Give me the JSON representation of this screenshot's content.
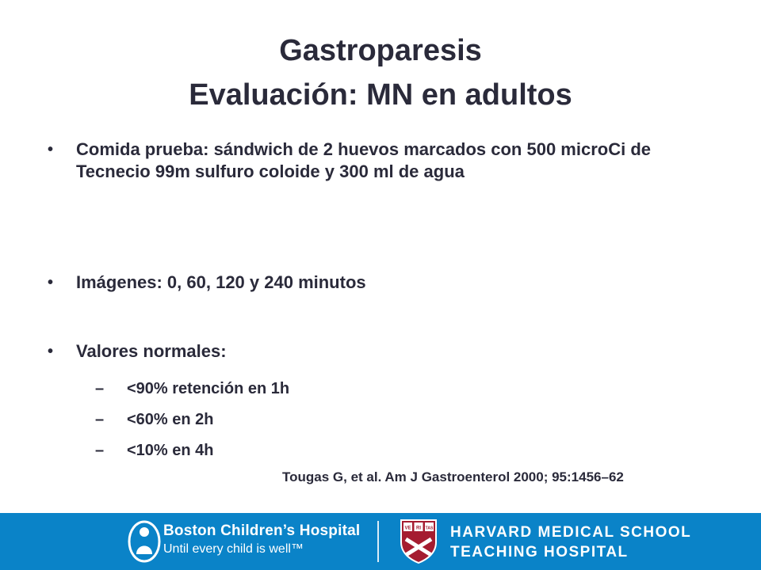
{
  "slide": {
    "title_line1": "Gastroparesis",
    "title_line2": "Evaluación:  MN en adultos",
    "bullets": [
      "Comida prueba: sándwich de 2 huevos marcados con 500 microCi de Tecnecio 99m sulfuro coloide y 300 ml de agua",
      "Imágenes: 0, 60, 120 y 240 minutos",
      "Valores normales:"
    ],
    "subbullets": [
      "<90% retención en 1h",
      "<60% en 2h",
      "<10% en 4h"
    ],
    "bullet_glyph": "•",
    "dash_glyph": "–",
    "citation": "Tougas G, et al. Am J Gastroenterol 2000; 95:1456–62"
  },
  "footer": {
    "bch_name": "Boston Children’s Hospital",
    "bch_tagline": "Until every child is well™",
    "hms_line1": "HARVARD MEDICAL SCHOOL",
    "hms_line2": "TEACHING HOSPITAL",
    "shield_text": [
      "VE",
      "RI",
      "TAS"
    ],
    "colors": {
      "footer_bg": "#0a83c8",
      "shield_red": "#a51c30"
    }
  }
}
